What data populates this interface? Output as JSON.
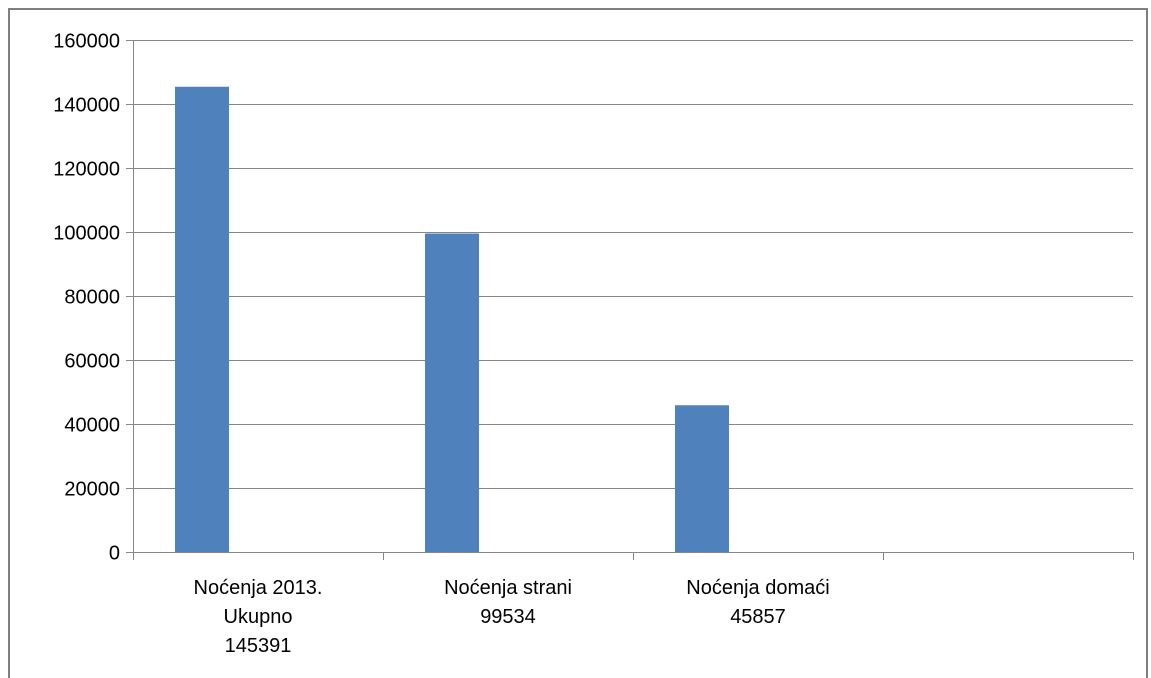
{
  "chart_data": {
    "type": "bar",
    "categories": [
      [
        "Noćenja 2013.",
        "Ukupno",
        "145391"
      ],
      [
        "Noćenja strani",
        "99534"
      ],
      [
        "Noćenja domaći",
        "45857"
      ],
      [
        ""
      ]
    ],
    "values": [
      145391,
      99534,
      45857,
      null
    ],
    "title": "",
    "xlabel": "",
    "ylabel": "",
    "ylim": [
      0,
      160000
    ],
    "yticks": [
      0,
      20000,
      40000,
      60000,
      80000,
      100000,
      120000,
      140000,
      160000
    ],
    "ytick_labels": [
      "0",
      "20000",
      "40000",
      "60000",
      "80000",
      "100000",
      "120000",
      "140000",
      "160000"
    ],
    "grid": true,
    "legend": "none",
    "bar_color": "#4f81bd",
    "grid_color": "#868686"
  }
}
